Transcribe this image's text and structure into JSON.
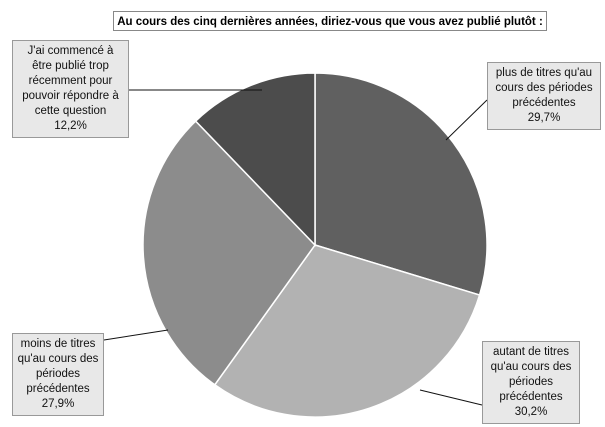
{
  "chart_data": {
    "type": "pie",
    "title": "Au cours des cinq dernières années, diriez-vous que vous avez publié plutôt :",
    "categories": [
      "plus de titres qu'au cours des périodes précédentes",
      "autant de titres qu'au cours des périodes précédentes",
      "moins de titres qu'au cours des périodes précédentes",
      "J'ai commencé à être publié trop récemment pour pouvoir répondre à cette question"
    ],
    "values": [
      29.7,
      30.2,
      27.9,
      12.2
    ],
    "value_labels": [
      "29,7%",
      "30,2%",
      "27,9%",
      "12,2%"
    ],
    "colors": [
      "#606060",
      "#b2b2b2",
      "#8c8c8c",
      "#4c4c4c"
    ]
  }
}
